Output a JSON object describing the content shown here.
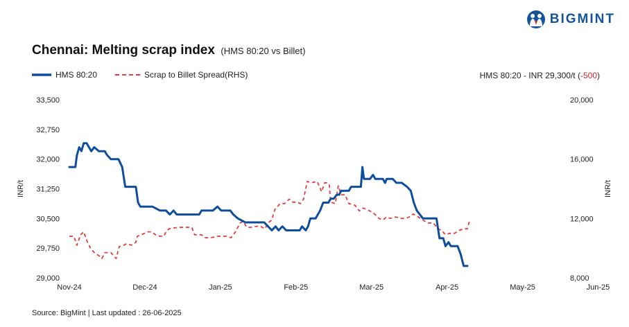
{
  "brand": {
    "name": "BIGMINT",
    "logo_icon": "bigmint-people-icon"
  },
  "header": {
    "title": "Chennai: Melting scrap index",
    "subtitle": "(HMS 80:20 vs Billet)"
  },
  "status": {
    "text": "HMS 80:20 - INR 29,300/t (",
    "change": "-500",
    "suffix": ")"
  },
  "footer": {
    "source": "Source: BigMint | Last updated : 26-06-2025"
  },
  "colors": {
    "hms": "#0e4d9e",
    "spread": "#e03d3d",
    "brand": "#15549a",
    "negative": "#d9252b"
  },
  "chart_data": {
    "type": "line",
    "title": "Chennai: Melting scrap index",
    "ylabel": "INR/t",
    "y2label": "INR/t",
    "categories": [
      "Nov-24",
      "Dec-24",
      "Jan-25",
      "Feb-25",
      "Mar-25",
      "Apr-25",
      "May-25",
      "Jun-25"
    ],
    "ylim": [
      29000,
      33500
    ],
    "yticks": [
      "29,000",
      "29,750",
      "30,500",
      "31,250",
      "32,000",
      "32,750",
      "33,500"
    ],
    "y2lim": [
      8000,
      20000
    ],
    "y2ticks": [
      "8,000",
      "12,000",
      "16,000",
      "20,000"
    ],
    "grid": false,
    "legend": "top-left",
    "series": [
      {
        "name": "HMS 80:20",
        "axis": "left",
        "style": "solid",
        "points": [
          [
            0,
            31800
          ],
          [
            0.08,
            31800
          ],
          [
            0.1,
            32100
          ],
          [
            0.13,
            32300
          ],
          [
            0.16,
            32200
          ],
          [
            0.19,
            32400
          ],
          [
            0.23,
            32400
          ],
          [
            0.26,
            32300
          ],
          [
            0.29,
            32200
          ],
          [
            0.33,
            32300
          ],
          [
            0.39,
            32200
          ],
          [
            0.47,
            32200
          ],
          [
            0.5,
            32100
          ],
          [
            0.55,
            32000
          ],
          [
            0.65,
            32000
          ],
          [
            0.7,
            31800
          ],
          [
            0.74,
            31300
          ],
          [
            0.88,
            31300
          ],
          [
            0.91,
            30900
          ],
          [
            0.94,
            30800
          ],
          [
            1.1,
            30800
          ],
          [
            1.2,
            30700
          ],
          [
            1.28,
            30700
          ],
          [
            1.33,
            30600
          ],
          [
            1.38,
            30700
          ],
          [
            1.42,
            30600
          ],
          [
            1.72,
            30600
          ],
          [
            1.75,
            30700
          ],
          [
            1.9,
            30700
          ],
          [
            1.96,
            30800
          ],
          [
            2.01,
            30700
          ],
          [
            2.13,
            30700
          ],
          [
            2.17,
            30600
          ],
          [
            2.23,
            30500
          ],
          [
            2.33,
            30400
          ],
          [
            2.58,
            30400
          ],
          [
            2.63,
            30300
          ],
          [
            2.68,
            30200
          ],
          [
            2.73,
            30300
          ],
          [
            2.77,
            30200
          ],
          [
            2.82,
            30300
          ],
          [
            2.87,
            30200
          ],
          [
            3.05,
            30200
          ],
          [
            3.08,
            30300
          ],
          [
            3.13,
            30200
          ],
          [
            3.16,
            30300
          ],
          [
            3.19,
            30500
          ],
          [
            3.26,
            30500
          ],
          [
            3.32,
            30700
          ],
          [
            3.36,
            30900
          ],
          [
            3.43,
            30900
          ],
          [
            3.46,
            31000
          ],
          [
            3.5,
            31000
          ],
          [
            3.54,
            31100
          ],
          [
            3.57,
            31100
          ],
          [
            3.6,
            31200
          ],
          [
            3.7,
            31200
          ],
          [
            3.73,
            31300
          ],
          [
            3.86,
            31300
          ],
          [
            3.88,
            31800
          ],
          [
            3.9,
            31500
          ],
          [
            3.98,
            31500
          ],
          [
            4.02,
            31600
          ],
          [
            4.05,
            31500
          ],
          [
            4.15,
            31500
          ],
          [
            4.18,
            31400
          ],
          [
            4.2,
            31500
          ],
          [
            4.28,
            31500
          ],
          [
            4.33,
            31400
          ],
          [
            4.4,
            31400
          ],
          [
            4.47,
            31300
          ],
          [
            4.52,
            31200
          ],
          [
            4.56,
            30900
          ],
          [
            4.6,
            30700
          ],
          [
            4.64,
            30600
          ],
          [
            4.68,
            30500
          ],
          [
            4.86,
            30500
          ],
          [
            4.9,
            30000
          ],
          [
            4.95,
            30000
          ],
          [
            4.98,
            29800
          ],
          [
            5.02,
            29900
          ],
          [
            5.05,
            29800
          ],
          [
            5.14,
            29800
          ],
          [
            5.18,
            29600
          ],
          [
            5.22,
            29300
          ],
          [
            5.27,
            29300
          ]
        ]
      },
      {
        "name": "Scrap to Billet Spread(RHS)",
        "axis": "right",
        "style": "dashed",
        "points": [
          [
            0,
            10800
          ],
          [
            0.06,
            10800
          ],
          [
            0.1,
            10200
          ],
          [
            0.15,
            10900
          ],
          [
            0.19,
            11100
          ],
          [
            0.24,
            10400
          ],
          [
            0.28,
            10000
          ],
          [
            0.33,
            9700
          ],
          [
            0.39,
            9500
          ],
          [
            0.43,
            9300
          ],
          [
            0.47,
            9700
          ],
          [
            0.55,
            9700
          ],
          [
            0.62,
            9300
          ],
          [
            0.66,
            10100
          ],
          [
            0.72,
            10200
          ],
          [
            0.76,
            10300
          ],
          [
            0.82,
            10200
          ],
          [
            0.88,
            10400
          ],
          [
            0.9,
            10800
          ],
          [
            0.95,
            10900
          ],
          [
            1.04,
            11100
          ],
          [
            1.09,
            11100
          ],
          [
            1.14,
            10900
          ],
          [
            1.2,
            10800
          ],
          [
            1.25,
            10800
          ],
          [
            1.28,
            11100
          ],
          [
            1.32,
            11300
          ],
          [
            1.43,
            11400
          ],
          [
            1.62,
            11400
          ],
          [
            1.66,
            10900
          ],
          [
            1.75,
            10900
          ],
          [
            1.8,
            10700
          ],
          [
            1.87,
            10700
          ],
          [
            1.96,
            10800
          ],
          [
            2.08,
            10800
          ],
          [
            2.14,
            10700
          ],
          [
            2.2,
            11100
          ],
          [
            2.26,
            11700
          ],
          [
            2.3,
            11800
          ],
          [
            2.35,
            11400
          ],
          [
            2.4,
            11400
          ],
          [
            2.52,
            11500
          ],
          [
            2.59,
            11300
          ],
          [
            2.63,
            11700
          ],
          [
            2.68,
            11900
          ],
          [
            2.72,
            12600
          ],
          [
            2.79,
            13000
          ],
          [
            2.85,
            13000
          ],
          [
            2.91,
            13300
          ],
          [
            2.96,
            13100
          ],
          [
            3.02,
            13100
          ],
          [
            3.06,
            13000
          ],
          [
            3.1,
            13300
          ],
          [
            3.15,
            14500
          ],
          [
            3.2,
            14400
          ],
          [
            3.28,
            14500
          ],
          [
            3.34,
            13800
          ],
          [
            3.38,
            14400
          ],
          [
            3.42,
            14400
          ],
          [
            3.44,
            14300
          ],
          [
            3.46,
            13100
          ],
          [
            3.52,
            13000
          ],
          [
            3.56,
            14200
          ],
          [
            3.6,
            13600
          ],
          [
            3.65,
            13600
          ],
          [
            3.7,
            13000
          ],
          [
            3.78,
            12900
          ],
          [
            3.84,
            12500
          ],
          [
            3.89,
            12700
          ],
          [
            3.94,
            12600
          ],
          [
            4.02,
            12400
          ],
          [
            4.1,
            12000
          ],
          [
            4.15,
            11900
          ],
          [
            4.2,
            12100
          ],
          [
            4.25,
            12000
          ],
          [
            4.32,
            12100
          ],
          [
            4.4,
            12000
          ],
          [
            4.45,
            12000
          ],
          [
            4.5,
            12100
          ],
          [
            4.55,
            12300
          ],
          [
            4.62,
            12100
          ],
          [
            4.68,
            11900
          ],
          [
            4.74,
            11700
          ],
          [
            4.82,
            11700
          ],
          [
            4.88,
            11300
          ],
          [
            4.93,
            11200
          ],
          [
            4.98,
            10900
          ],
          [
            5.03,
            11000
          ],
          [
            5.1,
            11000
          ],
          [
            5.16,
            11200
          ],
          [
            5.22,
            11300
          ],
          [
            5.27,
            11300
          ],
          [
            5.3,
            11900
          ]
        ]
      }
    ]
  }
}
